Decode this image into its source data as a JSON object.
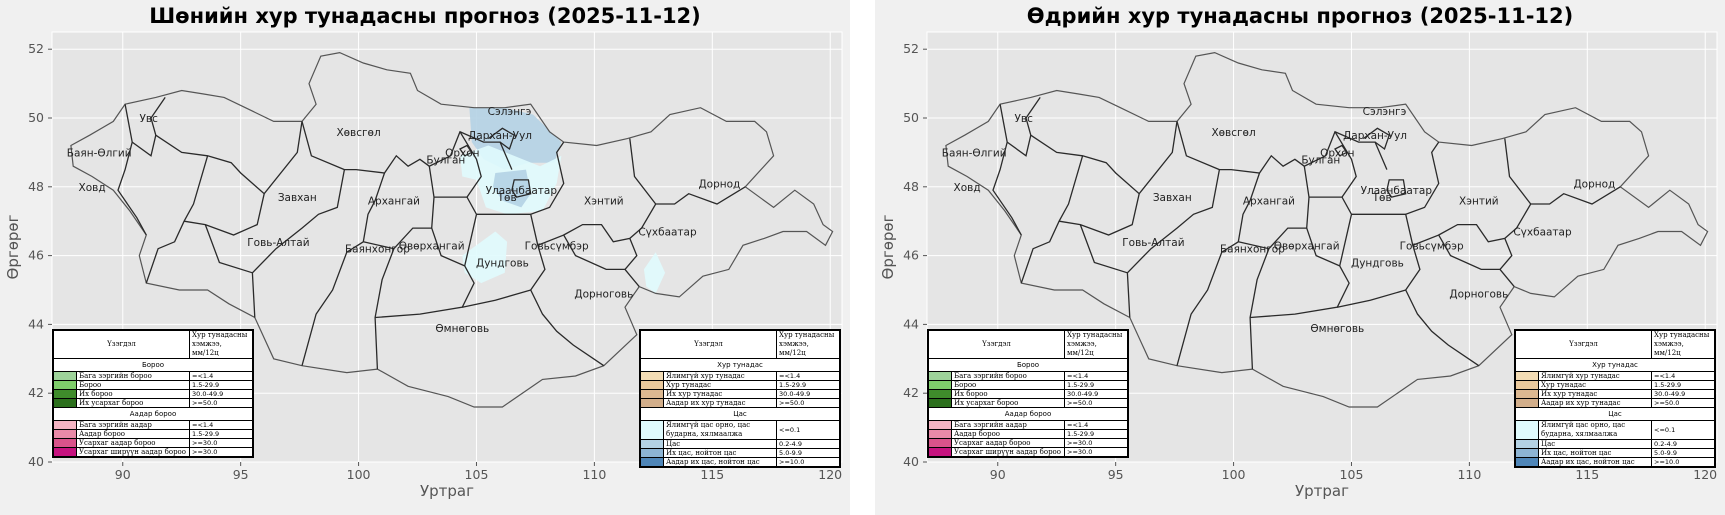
{
  "panels": [
    {
      "id": "night",
      "title": "Шөнийн хур тунадасны прогноз (2025-11-12)",
      "xlabel": "Уртраг",
      "ylabel": "Өргөрөг",
      "show_precip": true
    },
    {
      "id": "day",
      "title": "Өдрийн хур тунадасны прогноз (2025-11-12)",
      "xlabel": "Уртраг",
      "ylabel": "Өргөрөг",
      "show_precip": false
    }
  ],
  "axes": {
    "xlim": [
      87,
      120.5
    ],
    "ylim": [
      40,
      52.5
    ],
    "xticks": [
      90,
      95,
      100,
      105,
      110,
      115,
      120
    ],
    "yticks": [
      40,
      42,
      44,
      46,
      48,
      50,
      52
    ],
    "grid": true
  },
  "provinces": [
    {
      "name": "Увс",
      "lon": 91.1,
      "lat": 50.0
    },
    {
      "name": "Баян-Өлгий",
      "lon": 89.0,
      "lat": 49.0
    },
    {
      "name": "Ховд",
      "lon": 88.7,
      "lat": 48.0
    },
    {
      "name": "Хөвсгөл",
      "lon": 100.0,
      "lat": 49.6
    },
    {
      "name": "Завхан",
      "lon": 97.4,
      "lat": 47.7
    },
    {
      "name": "Говь-Алтай",
      "lon": 96.6,
      "lat": 46.4
    },
    {
      "name": "Архангай",
      "lon": 101.5,
      "lat": 47.6
    },
    {
      "name": "Булган",
      "lon": 103.7,
      "lat": 48.8
    },
    {
      "name": "Орхон",
      "lon": 104.4,
      "lat": 49.0
    },
    {
      "name": "Сэлэнгэ",
      "lon": 106.4,
      "lat": 50.2
    },
    {
      "name": "Дархан-Уул",
      "lon": 106.0,
      "lat": 49.5
    },
    {
      "name": "Улаанбаатар",
      "lon": 106.9,
      "lat": 47.9
    },
    {
      "name": "Төв",
      "lon": 106.3,
      "lat": 47.7
    },
    {
      "name": "Баянхонгор",
      "lon": 100.8,
      "lat": 46.2
    },
    {
      "name": "Өвөрхангай",
      "lon": 103.1,
      "lat": 46.3
    },
    {
      "name": "Дундговь",
      "lon": 106.1,
      "lat": 45.8
    },
    {
      "name": "Говьсүмбэр",
      "lon": 108.4,
      "lat": 46.3
    },
    {
      "name": "Хэнтий",
      "lon": 110.4,
      "lat": 47.6
    },
    {
      "name": "Дорнод",
      "lon": 115.3,
      "lat": 48.1
    },
    {
      "name": "Сүхбаатар",
      "lon": 113.1,
      "lat": 46.7
    },
    {
      "name": "Дорноговь",
      "lon": 110.4,
      "lat": 44.9
    },
    {
      "name": "Өмнөговь",
      "lon": 104.4,
      "lat": 43.9
    }
  ],
  "precip_areas_night": [
    {
      "category": "Цас",
      "color": "#b4d2e4",
      "points": [
        [
          104.7,
          50.3
        ],
        [
          106.2,
          50.3
        ],
        [
          107.4,
          50.1
        ],
        [
          108.6,
          49.3
        ],
        [
          108.3,
          48.7
        ],
        [
          107.2,
          48.7
        ],
        [
          106.2,
          48.5
        ],
        [
          105.3,
          48.8
        ],
        [
          104.8,
          49.3
        ]
      ]
    },
    {
      "category": "Ямар нэг цас орно",
      "color": "#e0fbfd",
      "points": [
        [
          104.3,
          48.9
        ],
        [
          105.5,
          49.2
        ],
        [
          107.7,
          48.6
        ],
        [
          108.6,
          48.9
        ],
        [
          108.4,
          48.1
        ],
        [
          107.8,
          47.3
        ],
        [
          106.3,
          47.2
        ],
        [
          105.4,
          47.4
        ],
        [
          105.0,
          48.2
        ],
        [
          104.4,
          48.3
        ]
      ]
    },
    {
      "category": "Цас",
      "color": "#b4d2e4",
      "points": [
        [
          105.8,
          48.4
        ],
        [
          107.1,
          48.5
        ],
        [
          107.3,
          47.8
        ],
        [
          106.9,
          47.4
        ],
        [
          106.1,
          47.6
        ],
        [
          105.7,
          48.0
        ]
      ]
    },
    {
      "category": "Ямар нэг цас орно",
      "color": "#e0fbfd",
      "points": [
        [
          104.4,
          46.0
        ],
        [
          105.8,
          46.7
        ],
        [
          106.3,
          46.4
        ],
        [
          106.2,
          45.5
        ],
        [
          105.2,
          45.2
        ],
        [
          104.5,
          45.5
        ]
      ]
    },
    {
      "category": "Ямар нэг цас орно",
      "color": "#e0fbfd",
      "points": [
        [
          112.1,
          45.6
        ],
        [
          112.6,
          46.1
        ],
        [
          113.0,
          45.5
        ],
        [
          112.6,
          44.9
        ],
        [
          112.2,
          45.1
        ]
      ]
    }
  ],
  "legend_left": {
    "col1_header": "Үзэгдэл",
    "col2_header": "Хур тунадасны хэмжээ, мм/12ц",
    "sections": [
      {
        "title": "Бороо",
        "rows": [
          {
            "label": "Бага зэргийн бороо",
            "value": "=<1.4",
            "color": "#9ed39a"
          },
          {
            "label": "Бороо",
            "value": "1.5-29.9",
            "color": "#7fce6b"
          },
          {
            "label": "Их бороо",
            "value": "30.0-49.9",
            "color": "#3f8c2b"
          },
          {
            "label": "Их усархаг бороо",
            "value": ">=50.0",
            "color": "#2b6f1c"
          }
        ]
      },
      {
        "title": "Аадар бороо",
        "rows": [
          {
            "label": "Бага зэргийн аадар",
            "value": "=<1.4",
            "color": "#f4b4c3"
          },
          {
            "label": "Аадар бороо",
            "value": "1.5-29.9",
            "color": "#e98aa8"
          },
          {
            "label": "Усархаг аадар бороо",
            "value": ">=30.0",
            "color": "#d9538b"
          },
          {
            "label": "Усархаг ширүүн аадар бороо",
            "value": ">=30.0",
            "color": "#c6127f"
          }
        ]
      }
    ]
  },
  "legend_right": {
    "col1_header": "Үзэгдэл",
    "col2_header": "Хур тунадасны хэмжээ, мм/12ц",
    "sections": [
      {
        "title": "Хур тунадас",
        "rows": [
          {
            "label": "Ялимгүй хур тунадас",
            "value": "=<1.4",
            "color": "#f3dcb4"
          },
          {
            "label": "Хур тунадас",
            "value": "1.5-29.9",
            "color": "#eac99c"
          },
          {
            "label": "Их хур тунадас",
            "value": "30.0-49.9",
            "color": "#dcb891"
          },
          {
            "label": "Аадар их хур тунадас",
            "value": ">=50.0",
            "color": "#d2ae8a"
          }
        ]
      },
      {
        "title": "Цас",
        "rows": [
          {
            "label": "Ялимгүй цас орно, цас бударна, хялмаалжа",
            "value": "<=0.1",
            "color": "#e0fbfd",
            "tall": true
          },
          {
            "label": "Цас",
            "value": "0.2-4.9",
            "color": "#b4d2e4"
          },
          {
            "label": "Их цас, нойтон цас",
            "value": "5.0-9.9",
            "color": "#8db4d3"
          },
          {
            "label": "Аадар их цас, нойтон цас",
            "value": ">=10.0",
            "color": "#4f86b8"
          }
        ]
      }
    ]
  },
  "colors": {
    "plot_bg": "#e5e5e5",
    "grid": "#ffffff",
    "border": "#2a2a2a",
    "country_border": "#555555",
    "tick_text": "#555555"
  }
}
